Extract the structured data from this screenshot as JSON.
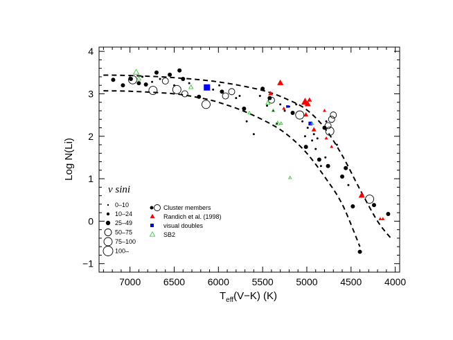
{
  "chart_data": {
    "type": "scatter",
    "title": "",
    "xlabel": "T",
    "xlabel_sub": "eff",
    "xlabel_suffix": "(V−K) (K)",
    "ylabel": "Log N(Li)",
    "xlim": [
      7350,
      3950
    ],
    "ylim": [
      -1.2,
      4.1
    ],
    "x_ticks": [
      7000,
      6500,
      6000,
      5500,
      5000,
      4500,
      4000
    ],
    "x_tick_labels": [
      "7000",
      "6500",
      "6000",
      "5500",
      "5000",
      "4500",
      "4000"
    ],
    "y_ticks": [
      -1,
      0,
      1,
      2,
      3,
      4
    ],
    "y_tick_labels": [
      "−1",
      "0",
      "1",
      "2",
      "3",
      "4"
    ],
    "vsini_legend": {
      "title": "v sini",
      "bins": [
        "0–10",
        "10–24",
        "25–49",
        "50–75",
        "75–100",
        "100–"
      ]
    },
    "legend": {
      "placement": "bottom-left",
      "entries": [
        {
          "label": "Cluster members",
          "symbol": "filled+open circles",
          "color": "#000000"
        },
        {
          "label": "Randich et al. (1998)",
          "symbol": "filled triangle",
          "color": "#ff0000"
        },
        {
          "label": "visual doubles",
          "symbol": "filled square",
          "color": "#0000ff"
        },
        {
          "label": "SB2",
          "symbol": "open triangle",
          "color": "#33cc33"
        }
      ]
    },
    "curves": [
      {
        "name": "upper-envelope",
        "style": "dashed",
        "points": [
          [
            7300,
            3.44
          ],
          [
            7000,
            3.43
          ],
          [
            6500,
            3.38
          ],
          [
            6000,
            3.28
          ],
          [
            5500,
            3.08
          ],
          [
            5200,
            2.85
          ],
          [
            5000,
            2.62
          ],
          [
            4800,
            2.2
          ],
          [
            4600,
            1.55
          ],
          [
            4400,
            0.75
          ],
          [
            4200,
            0.0
          ],
          [
            4050,
            -0.4
          ]
        ]
      },
      {
        "name": "lower-envelope",
        "style": "dashed",
        "points": [
          [
            7300,
            3.07
          ],
          [
            7000,
            3.06
          ],
          [
            6500,
            3.0
          ],
          [
            6200,
            2.9
          ],
          [
            6000,
            2.8
          ],
          [
            5700,
            2.58
          ],
          [
            5400,
            2.28
          ],
          [
            5200,
            2.0
          ],
          [
            5000,
            1.6
          ],
          [
            4800,
            1.05
          ],
          [
            4600,
            0.4
          ],
          [
            4400,
            -0.6
          ]
        ]
      }
    ],
    "series": [
      {
        "name": "Cluster members",
        "marker": "circle",
        "color": "#000000",
        "points": [
          {
            "x": 7190,
            "y": 3.33,
            "s": 2,
            "f": 1
          },
          {
            "x": 7080,
            "y": 3.2,
            "s": 2,
            "f": 1
          },
          {
            "x": 6990,
            "y": 3.35,
            "s": 2,
            "f": 1
          },
          {
            "x": 6970,
            "y": 3.33,
            "s": 4,
            "f": 0
          },
          {
            "x": 6900,
            "y": 3.25,
            "s": 2,
            "f": 1
          },
          {
            "x": 6860,
            "y": 3.4,
            "s": 1,
            "f": 1
          },
          {
            "x": 6820,
            "y": 3.22,
            "s": 2,
            "f": 1
          },
          {
            "x": 6750,
            "y": 3.28,
            "s": 1,
            "f": 1
          },
          {
            "x": 6700,
            "y": 3.5,
            "s": 2,
            "f": 1
          },
          {
            "x": 6660,
            "y": 3.35,
            "s": 1,
            "f": 1
          },
          {
            "x": 6740,
            "y": 3.08,
            "s": 4,
            "f": 0
          },
          {
            "x": 6600,
            "y": 3.3,
            "s": 3,
            "f": 0
          },
          {
            "x": 6550,
            "y": 3.45,
            "s": 2,
            "f": 1
          },
          {
            "x": 6500,
            "y": 3.2,
            "s": 1,
            "f": 1
          },
          {
            "x": 6440,
            "y": 3.55,
            "s": 2,
            "f": 1
          },
          {
            "x": 6470,
            "y": 3.1,
            "s": 4,
            "f": 0
          },
          {
            "x": 6400,
            "y": 3.35,
            "s": 2,
            "f": 1
          },
          {
            "x": 6380,
            "y": 3.0,
            "s": 3,
            "f": 0
          },
          {
            "x": 6330,
            "y": 3.25,
            "s": 1,
            "f": 1
          },
          {
            "x": 6220,
            "y": 2.93,
            "s": 2,
            "f": 1
          },
          {
            "x": 6140,
            "y": 2.75,
            "s": 4,
            "f": 0
          },
          {
            "x": 6060,
            "y": 3.1,
            "s": 1,
            "f": 1
          },
          {
            "x": 5990,
            "y": 3.2,
            "s": 1,
            "f": 1
          },
          {
            "x": 5960,
            "y": 3.05,
            "s": 2,
            "f": 1
          },
          {
            "x": 5920,
            "y": 2.95,
            "s": 3,
            "f": 0
          },
          {
            "x": 5850,
            "y": 3.05,
            "s": 3,
            "f": 0
          },
          {
            "x": 5800,
            "y": 2.9,
            "s": 1,
            "f": 1
          },
          {
            "x": 5760,
            "y": 2.95,
            "s": 1,
            "f": 1
          },
          {
            "x": 5710,
            "y": 2.65,
            "s": 2,
            "f": 1
          },
          {
            "x": 5680,
            "y": 2.35,
            "s": 1,
            "f": 1
          },
          {
            "x": 5600,
            "y": 2.05,
            "s": 1,
            "f": 1
          },
          {
            "x": 5530,
            "y": 2.95,
            "s": 1,
            "f": 1
          },
          {
            "x": 5500,
            "y": 3.12,
            "s": 2,
            "f": 1
          },
          {
            "x": 5450,
            "y": 2.72,
            "s": 1,
            "f": 1
          },
          {
            "x": 5420,
            "y": 2.9,
            "s": 2,
            "f": 1
          },
          {
            "x": 5400,
            "y": 2.85,
            "s": 3,
            "f": 0
          },
          {
            "x": 5380,
            "y": 2.6,
            "s": 1,
            "f": 1
          },
          {
            "x": 5340,
            "y": 2.3,
            "s": 1,
            "f": 1
          },
          {
            "x": 5300,
            "y": 2.75,
            "s": 1,
            "f": 1
          },
          {
            "x": 5250,
            "y": 2.6,
            "s": 1,
            "f": 1
          },
          {
            "x": 5200,
            "y": 2.7,
            "s": 1,
            "f": 1
          },
          {
            "x": 5160,
            "y": 2.55,
            "s": 2,
            "f": 1
          },
          {
            "x": 5120,
            "y": 2.75,
            "s": 1,
            "f": 1
          },
          {
            "x": 5080,
            "y": 2.5,
            "s": 4,
            "f": 0
          },
          {
            "x": 5050,
            "y": 2.35,
            "s": 1,
            "f": 1
          },
          {
            "x": 5020,
            "y": 2.0,
            "s": 1,
            "f": 1
          },
          {
            "x": 5010,
            "y": 1.75,
            "s": 2,
            "f": 1
          },
          {
            "x": 4990,
            "y": 2.2,
            "s": 1,
            "f": 1
          },
          {
            "x": 4960,
            "y": 2.3,
            "s": 1,
            "f": 1
          },
          {
            "x": 4940,
            "y": 1.9,
            "s": 1,
            "f": 1
          },
          {
            "x": 4920,
            "y": 2.05,
            "s": 1,
            "f": 1
          },
          {
            "x": 4900,
            "y": 1.7,
            "s": 1,
            "f": 1
          },
          {
            "x": 4880,
            "y": 1.95,
            "s": 1,
            "f": 1
          },
          {
            "x": 4860,
            "y": 1.45,
            "s": 2,
            "f": 1
          },
          {
            "x": 4840,
            "y": 1.3,
            "s": 1,
            "f": 1
          },
          {
            "x": 4800,
            "y": 2.2,
            "s": 2,
            "f": 1
          },
          {
            "x": 4780,
            "y": 2.35,
            "s": 1,
            "f": 1
          },
          {
            "x": 4760,
            "y": 2.25,
            "s": 3,
            "f": 0
          },
          {
            "x": 4740,
            "y": 2.12,
            "s": 4,
            "f": 0
          },
          {
            "x": 4720,
            "y": 2.4,
            "s": 3,
            "f": 0
          },
          {
            "x": 4700,
            "y": 2.5,
            "s": 3,
            "f": 0
          },
          {
            "x": 4790,
            "y": 1.5,
            "s": 1,
            "f": 1
          },
          {
            "x": 4760,
            "y": 1.3,
            "s": 2,
            "f": 1
          },
          {
            "x": 4660,
            "y": 1.8,
            "s": 1,
            "f": 1
          },
          {
            "x": 4600,
            "y": 1.05,
            "s": 2,
            "f": 1
          },
          {
            "x": 4560,
            "y": 1.25,
            "s": 2,
            "f": 1
          },
          {
            "x": 4530,
            "y": 0.85,
            "s": 1,
            "f": 1
          },
          {
            "x": 4480,
            "y": 0.35,
            "s": 2,
            "f": 1
          },
          {
            "x": 4400,
            "y": -0.72,
            "s": 2,
            "f": 1
          },
          {
            "x": 4290,
            "y": 0.52,
            "s": 4,
            "f": 0
          },
          {
            "x": 4240,
            "y": 0.38,
            "s": 2,
            "f": 1
          },
          {
            "x": 4080,
            "y": 0.17,
            "s": 2,
            "f": 1
          }
        ]
      },
      {
        "name": "Randich et al. (1998)",
        "marker": "triangle",
        "color": "#ff0000",
        "points": [
          {
            "x": 5300,
            "y": 3.25,
            "s": 3
          },
          {
            "x": 5410,
            "y": 3.0,
            "s": 2
          },
          {
            "x": 5020,
            "y": 2.8,
            "s": 4
          },
          {
            "x": 4990,
            "y": 2.75,
            "s": 3
          },
          {
            "x": 4970,
            "y": 2.85,
            "s": 2
          },
          {
            "x": 5010,
            "y": 2.5,
            "s": 2
          },
          {
            "x": 4920,
            "y": 2.15,
            "s": 2
          },
          {
            "x": 4800,
            "y": 2.6,
            "s": 1
          },
          {
            "x": 4780,
            "y": 1.95,
            "s": 1
          },
          {
            "x": 4720,
            "y": 1.75,
            "s": 1
          },
          {
            "x": 5260,
            "y": 2.65,
            "s": 1
          },
          {
            "x": 4380,
            "y": 0.6,
            "s": 3
          },
          {
            "x": 4170,
            "y": 0.05,
            "s": 1
          },
          {
            "x": 4140,
            "y": 0.05,
            "s": 1
          }
        ]
      },
      {
        "name": "visual doubles",
        "marker": "square",
        "color": "#0000ff",
        "points": [
          {
            "x": 6130,
            "y": 3.15,
            "s": 4
          },
          {
            "x": 4960,
            "y": 2.3,
            "s": 2
          },
          {
            "x": 5220,
            "y": 2.7,
            "s": 1
          }
        ]
      },
      {
        "name": "SB2",
        "marker": "open-triangle",
        "color": "#33cc33",
        "points": [
          {
            "x": 6930,
            "y": 3.5,
            "s": 3
          },
          {
            "x": 6900,
            "y": 3.35,
            "s": 2
          },
          {
            "x": 6310,
            "y": 3.15,
            "s": 2
          },
          {
            "x": 5650,
            "y": 2.55,
            "s": 1
          },
          {
            "x": 5440,
            "y": 2.78,
            "s": 2
          },
          {
            "x": 5380,
            "y": 2.6,
            "s": 1
          },
          {
            "x": 5330,
            "y": 2.3,
            "s": 2
          },
          {
            "x": 5290,
            "y": 2.3,
            "s": 1
          },
          {
            "x": 4940,
            "y": 2.3,
            "s": 1
          },
          {
            "x": 5190,
            "y": 1.02,
            "s": 1
          }
        ]
      }
    ]
  }
}
